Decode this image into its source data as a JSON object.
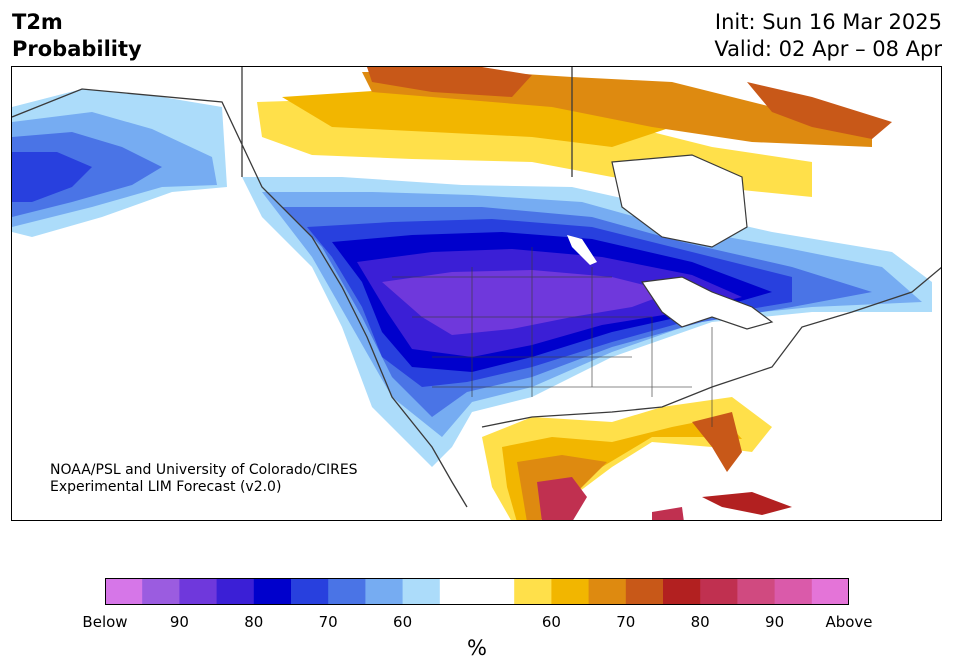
{
  "title": {
    "line1": "T2m",
    "line2": "Probability"
  },
  "run": {
    "init": "Init: Sun 16 Mar 2025",
    "valid": "Valid: 02 Apr – 08 Apr"
  },
  "credit": {
    "line1": "NOAA/PSL and University of Colorado/CIRES",
    "line2": "Experimental LIM Forecast (v2.0)"
  },
  "colorbar": {
    "unit": "%",
    "colors": [
      "#d676e8",
      "#9b5ce0",
      "#6f38dc",
      "#3b1fd6",
      "#0000cc",
      "#2840de",
      "#4a74e6",
      "#76acf2",
      "#acdcfa",
      "#ffffff",
      "#ffffff",
      "#ffe04a",
      "#f2b600",
      "#de8a10",
      "#c85818",
      "#b22020",
      "#c03050",
      "#d04a80",
      "#da5aaa",
      "#e474d8"
    ],
    "ticks": [
      {
        "label": "Below",
        "index": 0
      },
      {
        "label": "90",
        "index": 2
      },
      {
        "label": "80",
        "index": 4
      },
      {
        "label": "70",
        "index": 6
      },
      {
        "label": "60",
        "index": 8
      },
      {
        "label": "60",
        "index": 12
      },
      {
        "label": "70",
        "index": 14
      },
      {
        "label": "80",
        "index": 16
      },
      {
        "label": "90",
        "index": 18
      },
      {
        "label": "Above",
        "index": 20
      }
    ]
  },
  "map": {
    "ocean_color": "#ffffff",
    "land_color": "#ffffff",
    "border_color": "#3a3a3a"
  }
}
